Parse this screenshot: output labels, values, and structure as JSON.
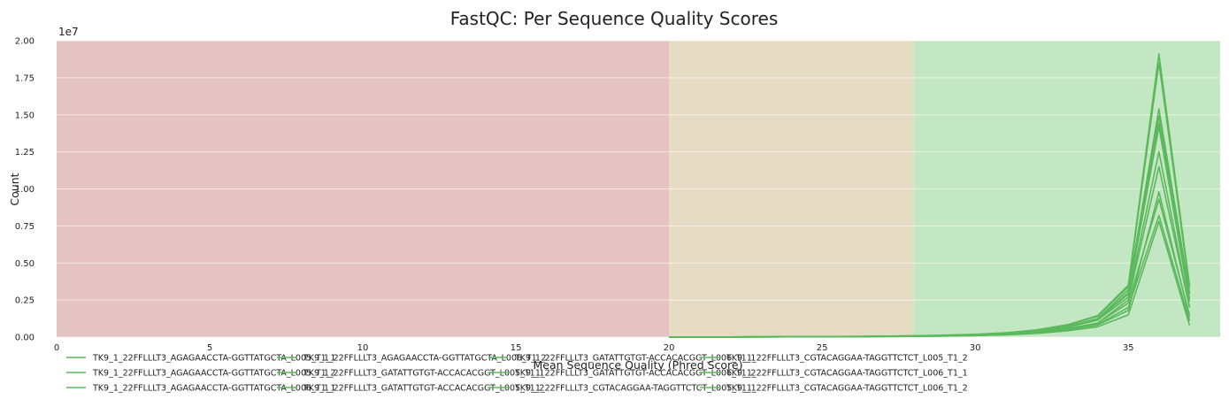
{
  "chart_data": {
    "type": "line",
    "title": "FastQC: Per Sequence Quality Scores",
    "xlabel": "Mean Sequence Quality (Phred Score)",
    "ylabel": "Count",
    "y_multiplier_label": "1e7",
    "xlim": [
      0,
      38
    ],
    "ylim": [
      0,
      20000000
    ],
    "x_ticks": [
      0,
      5,
      10,
      15,
      20,
      25,
      30,
      35
    ],
    "y_ticks": [
      0,
      2500000,
      5000000,
      7500000,
      10000000,
      12500000,
      15000000,
      17500000,
      20000000
    ],
    "y_tick_labels": [
      "0.00",
      "0.25",
      "0.50",
      "0.75",
      "1.00",
      "1.25",
      "1.50",
      "1.75",
      "2.00"
    ],
    "grid": true,
    "legend_placement": "bottom",
    "zones": [
      {
        "from": 0,
        "to": 20,
        "color": "#e6c3c3"
      },
      {
        "from": 20,
        "to": 28,
        "color": "#e6dcc4"
      },
      {
        "from": 28,
        "to": 38,
        "color": "#c3e6c3"
      }
    ],
    "line_color": "#5cb85c",
    "x": [
      20,
      21,
      22,
      23,
      24,
      25,
      26,
      27,
      28,
      29,
      30,
      31,
      32,
      33,
      34,
      35,
      36,
      37
    ],
    "series": [
      {
        "name": "TK9_1_22FFLLLT3_AGAGAACCTA-GGTTATGCTA_L005_T1_1",
        "values": [
          5000,
          8000,
          10000,
          14000,
          18000,
          24000,
          32000,
          45000,
          62000,
          90000,
          130000,
          200000,
          330000,
          560000,
          950000,
          2500000,
          11500000,
          2000000
        ]
      },
      {
        "name": "TK9_1_22FFLLLT3_AGAGAACCTA-GGTTATGCTA_L005_T1_2",
        "values": [
          5000,
          8000,
          10000,
          14000,
          18000,
          24000,
          32000,
          45000,
          62000,
          90000,
          130000,
          200000,
          330000,
          560000,
          950000,
          2300000,
          9300000,
          1500000
        ]
      },
      {
        "name": "TK9_1_22FFLLLT3_AGAGAACCTA-GGTTATGCTA_L006_T1_1",
        "values": [
          6000,
          9000,
          12000,
          16000,
          20000,
          27000,
          36000,
          50000,
          70000,
          100000,
          150000,
          230000,
          380000,
          650000,
          1150000,
          3000000,
          14400000,
          2600000
        ]
      },
      {
        "name": "TK9_1_22FFLLLT3_AGAGAACCTA-GGTTATGCTA_L006_T1_2",
        "values": [
          6000,
          9000,
          12000,
          16000,
          20000,
          27000,
          36000,
          50000,
          70000,
          100000,
          150000,
          230000,
          380000,
          650000,
          1150000,
          2700000,
          12500000,
          2000000
        ]
      },
      {
        "name": "TK9_1_22FFLLLT3_GATATTGTGT-ACCACACGGT_L005_T1_1",
        "values": [
          5000,
          7000,
          9000,
          12000,
          16000,
          21000,
          28000,
          40000,
          55000,
          80000,
          110000,
          170000,
          280000,
          480000,
          820000,
          1800000,
          9800000,
          1300000
        ]
      },
      {
        "name": "TK9_1_22FFLLLT3_GATATTGTGT-ACCACACGGT_L005_T1_2",
        "values": [
          4000,
          6000,
          8000,
          11000,
          15000,
          19000,
          25000,
          35000,
          50000,
          70000,
          100000,
          150000,
          250000,
          420000,
          700000,
          1500000,
          7800000,
          800000
        ]
      },
      {
        "name": "TK9_1_22FFLLLT3_GATATTGTGT-ACCACACGGT_L006_T1_1",
        "values": [
          6000,
          9000,
          12000,
          16000,
          21000,
          28000,
          38000,
          53000,
          75000,
          110000,
          160000,
          250000,
          420000,
          720000,
          1250000,
          3200000,
          14900000,
          2900000
        ]
      },
      {
        "name": "TK9_1_22FFLLLT3_GATATTGTGT-ACCACACGGT_L006_T1_2",
        "values": [
          5000,
          7000,
          9000,
          12000,
          16000,
          21000,
          28000,
          40000,
          55000,
          80000,
          115000,
          175000,
          290000,
          500000,
          850000,
          2000000,
          8200000,
          1100000
        ]
      },
      {
        "name": "TK9_1_22FFLLLT3_CGTACAGGAA-TAGGTTCTCT_L005_T1_1",
        "values": [
          7000,
          10000,
          13000,
          18000,
          24000,
          32000,
          44000,
          62000,
          86000,
          125000,
          180000,
          280000,
          470000,
          800000,
          1400000,
          3400000,
          18500000,
          3300000
        ]
      },
      {
        "name": "TK9_1_22FFLLLT3_CGTACAGGAA-TAGGTTCTCT_L005_T1_2",
        "values": [
          6000,
          9000,
          12000,
          16000,
          21000,
          28000,
          38000,
          53000,
          75000,
          110000,
          160000,
          250000,
          420000,
          700000,
          1200000,
          3200000,
          15400000,
          3000000
        ]
      },
      {
        "name": "TK9_1_22FFLLLT3_CGTACAGGAA-TAGGTTCTCT_L006_T1_1",
        "values": [
          7000,
          10000,
          14000,
          19000,
          25000,
          34000,
          46000,
          65000,
          90000,
          130000,
          190000,
          290000,
          490000,
          830000,
          1450000,
          3500000,
          19100000,
          3500000
        ]
      },
      {
        "name": "TK9_1_22FFLLLT3_CGTACAGGAA-TAGGTTCTCT_L006_T1_2",
        "values": [
          6000,
          9000,
          12000,
          16000,
          21000,
          28000,
          38000,
          53000,
          75000,
          110000,
          160000,
          250000,
          420000,
          700000,
          1200000,
          2900000,
          14200000,
          2400000
        ]
      }
    ]
  }
}
